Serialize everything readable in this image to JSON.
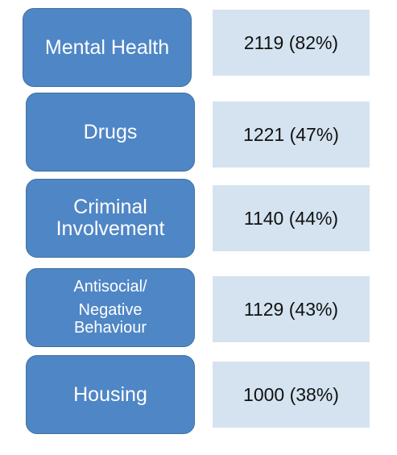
{
  "rows": [
    {
      "label_lines": [
        "Mental Health"
      ],
      "value": "2119 (82%)"
    },
    {
      "label_lines": [
        "Drugs"
      ],
      "value": "1221 (47%)"
    },
    {
      "label_lines": [
        "Criminal",
        "Involvement"
      ],
      "value": "1140 (44%)"
    },
    {
      "label_lines": [
        "Antisocial/",
        "Negative",
        "Behaviour"
      ],
      "value": "1129 (43%)"
    },
    {
      "label_lines": [
        "Housing"
      ],
      "value": "1000 (38%)"
    }
  ]
}
